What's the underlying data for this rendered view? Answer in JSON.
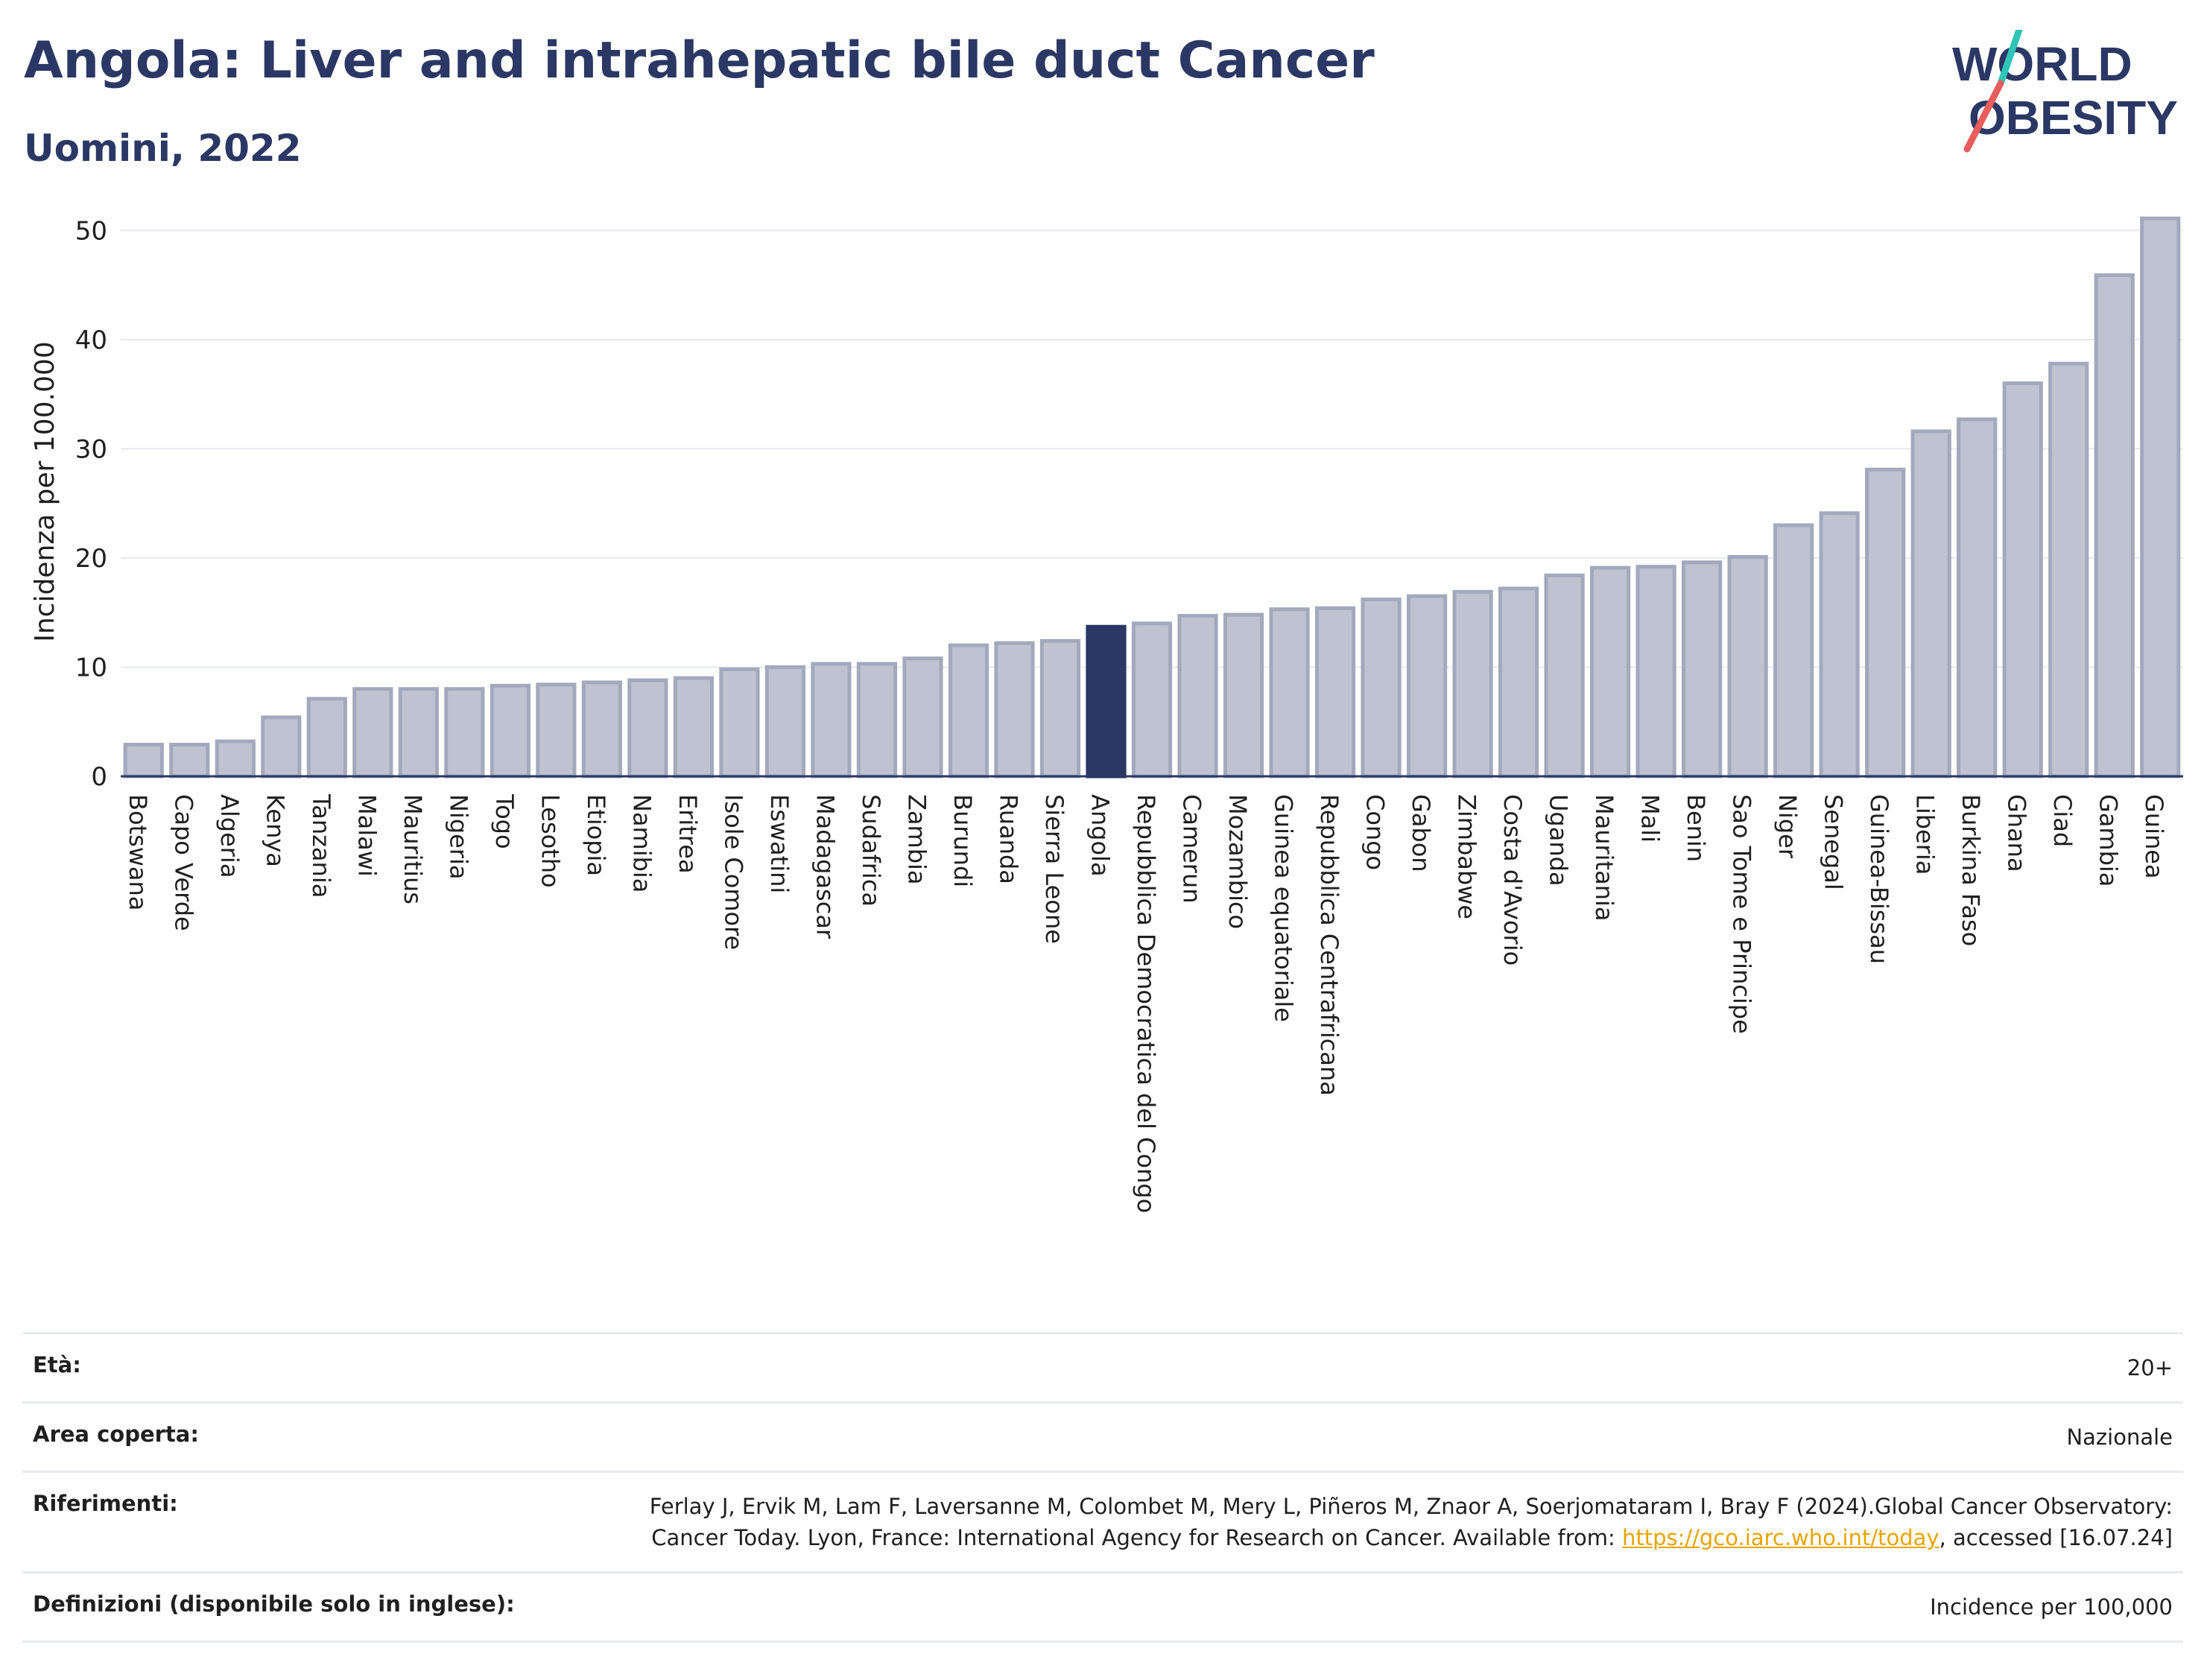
{
  "header": {
    "title": "Angola: Liver and intrahepatic bile duct Cancer",
    "subtitle": "Uomini, 2022"
  },
  "logo": {
    "line1": "WORLD",
    "line2": "OBESITY"
  },
  "colors": {
    "bar": "#bfc3d1",
    "bar_stroke": "#a3a9bd",
    "highlight": "#2b3764",
    "title": "#2b3764"
  },
  "chart_data": {
    "type": "bar",
    "categories": [
      "Botswana",
      "Capo Verde",
      "Algeria",
      "Kenya",
      "Tanzania",
      "Malawi",
      "Mauritius",
      "Nigeria",
      "Togo",
      "Lesotho",
      "Etiopia",
      "Namibia",
      "Eritrea",
      "Isole Comore",
      "Eswatini",
      "Madagascar",
      "Sudafrica",
      "Zambia",
      "Burundi",
      "Ruanda",
      "Sierra Leone",
      "Angola",
      "Repubblica Democratica del Congo",
      "Camerun",
      "Mozambico",
      "Guinea equatoriale",
      "Repubblica Centrafricana",
      "Congo",
      "Gabon",
      "Zimbabwe",
      "Costa d'Avorio",
      "Uganda",
      "Mauritania",
      "Mali",
      "Benin",
      "Sao Tome e Principe",
      "Niger",
      "Senegal",
      "Guinea-Bissau",
      "Liberia",
      "Burkina Faso",
      "Ghana",
      "Ciad",
      "Gambia",
      "Guinea"
    ],
    "values": [
      2.9,
      2.9,
      3.2,
      5.4,
      7.1,
      8.0,
      8.0,
      8.0,
      8.3,
      8.4,
      8.6,
      8.8,
      9.0,
      9.8,
      10.0,
      10.3,
      10.3,
      10.8,
      12.0,
      12.2,
      12.4,
      13.7,
      14.0,
      14.7,
      14.8,
      15.3,
      15.4,
      16.2,
      16.5,
      16.9,
      17.2,
      18.4,
      19.1,
      19.2,
      19.6,
      20.1,
      23.0,
      24.1,
      28.1,
      31.6,
      32.7,
      36.0,
      37.8,
      45.9,
      51.1
    ],
    "highlight": "Angola",
    "ylabel": "Incidenza per 100.000",
    "ylim": [
      0,
      52
    ],
    "yticks": [
      0,
      10,
      20,
      30,
      40,
      50
    ],
    "grid": true
  },
  "info": {
    "age_label": "Età:",
    "age_value": "20+",
    "area_label": "Area coperta:",
    "area_value": "Nazionale",
    "ref_label": "Riferimenti:",
    "ref_text_1": "Ferlay J, Ervik M, Lam F, Laversanne M, Colombet M, Mery L, Piñeros M, Znaor A, Soerjomataram I, Bray F (2024).Global Cancer Observatory: Cancer Today. Lyon, France: International Agency for Research on Cancer. Available from: ",
    "ref_link": "https://gco.iarc.who.int/today",
    "ref_text_2": ", accessed [16.07.24]",
    "def_label": "Definizioni (disponibile solo in inglese):",
    "def_value": "Incidence per 100,000"
  }
}
